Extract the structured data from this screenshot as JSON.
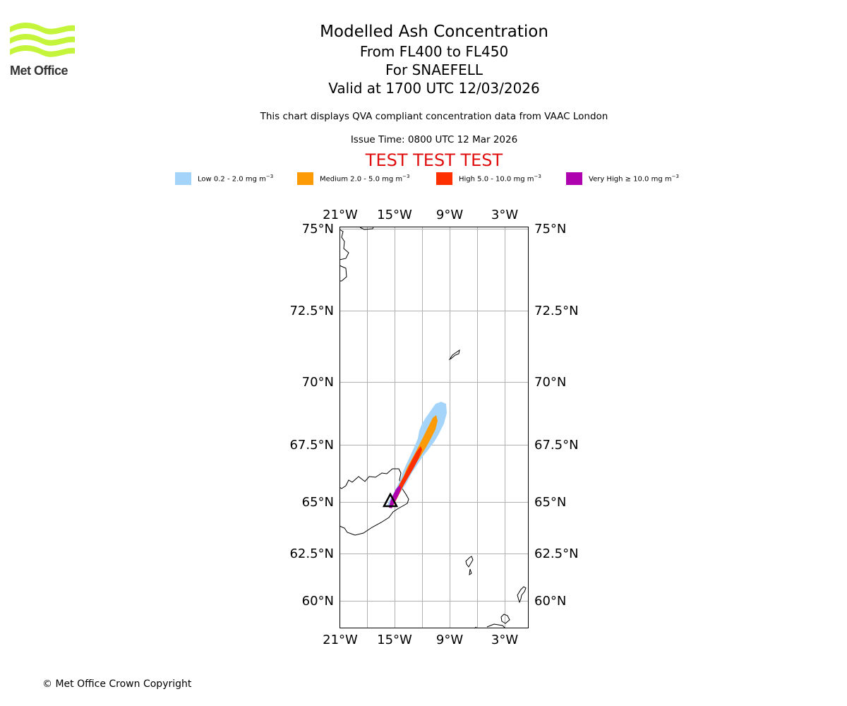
{
  "logo": {
    "text": "Met Office",
    "wave_color": "#c5f53a"
  },
  "titles": {
    "main": "Modelled Ash Concentration",
    "levels": "From FL400 to FL450",
    "volcano": "For SNAEFELL",
    "valid": "Valid at 1700 UTC 12/03/2026"
  },
  "description": "This chart displays QVA compliant concentration data from VAAC London",
  "issue_time": "Issue Time: 0800 UTC 12 Mar 2026",
  "test_banner": "TEST TEST TEST",
  "legend": [
    {
      "prefix": "Low 0.2 - 2.0 mg m",
      "color": "#a5d4fa"
    },
    {
      "prefix": "Medium 2.0 - 5.0 mg m",
      "color": "#fd9b06"
    },
    {
      "prefix": "High 5.0 - 10.0 mg m",
      "color": "#fe2f00"
    },
    {
      "prefix": "Very High ≥ 10.0 mg m",
      "color": "#ae02ae"
    }
  ],
  "legend_unit_exponent": "−3",
  "map": {
    "lon_labels": [
      "21°W",
      "15°W",
      "9°W",
      "3°W"
    ],
    "lat_labels": [
      "75°N",
      "72.5°N",
      "70°N",
      "67.5°N",
      "65°N",
      "62.5°N",
      "60°N"
    ],
    "lon_values": [
      -21,
      -15,
      -9,
      -3
    ],
    "lat_values": [
      75,
      72.5,
      70,
      67.5,
      65,
      62.5,
      60
    ],
    "volcano_symbol": "triangle"
  },
  "copyright": "© Met Office Crown Copyright"
}
